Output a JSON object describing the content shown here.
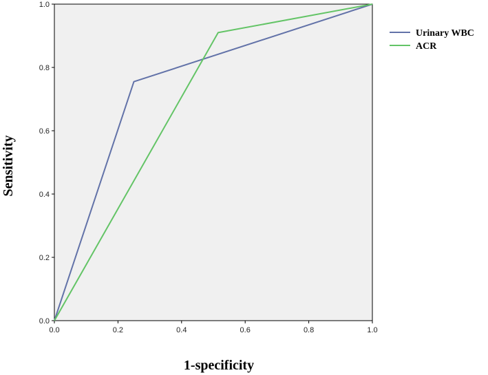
{
  "chart_data": {
    "type": "line",
    "title": "",
    "xlabel": "1-specificity",
    "ylabel": "Sensitivity",
    "xlim": [
      0,
      1
    ],
    "ylim": [
      0,
      1
    ],
    "x_ticks": [
      "0.0",
      "0.2",
      "0.4",
      "0.6",
      "0.8",
      "1.0"
    ],
    "y_ticks": [
      "0.0",
      "0.2",
      "0.4",
      "0.6",
      "0.8",
      "1.0"
    ],
    "grid": false,
    "legend_position": "right",
    "plot_background": "#f0f0f0",
    "series": [
      {
        "name": "Urinary WBC",
        "color": "#6272a8",
        "points": [
          [
            0.0,
            0.0
          ],
          [
            0.25,
            0.755
          ],
          [
            1.0,
            1.0
          ]
        ]
      },
      {
        "name": "ACR",
        "color": "#63c466",
        "points": [
          [
            0.0,
            0.0
          ],
          [
            0.515,
            0.91
          ],
          [
            1.0,
            1.0
          ]
        ]
      }
    ]
  }
}
